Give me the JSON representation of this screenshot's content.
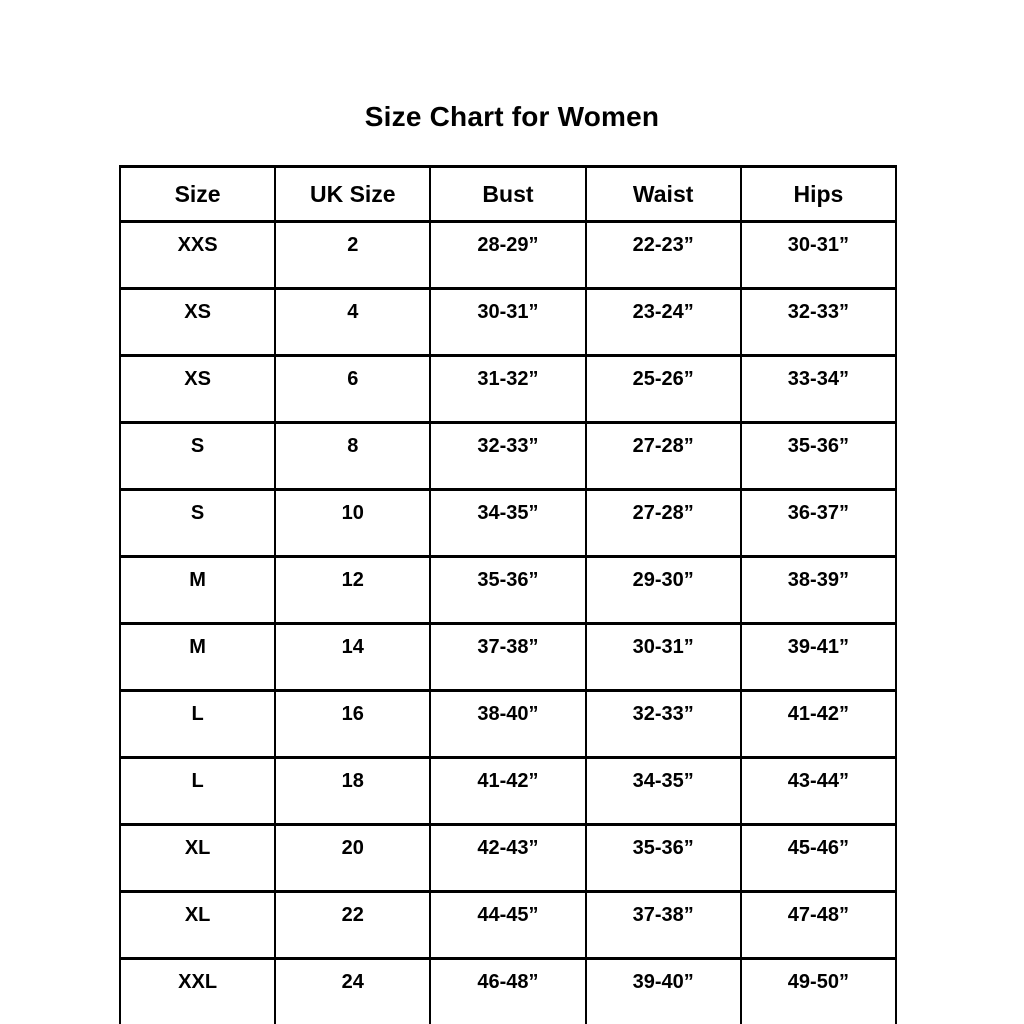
{
  "page": {
    "background_color": "#ffffff",
    "text_color": "#000000",
    "border_color": "#000000"
  },
  "chart_data": {
    "type": "table",
    "title": "Size Chart for Women",
    "columns": [
      "Size",
      "UK Size",
      "Bust",
      "Waist",
      "Hips"
    ],
    "rows": [
      [
        "XXS",
        "2",
        "28-29”",
        "22-23”",
        "30-31”"
      ],
      [
        "XS",
        "4",
        "30-31”",
        "23-24”",
        "32-33”"
      ],
      [
        "XS",
        "6",
        "31-32”",
        "25-26”",
        "33-34”"
      ],
      [
        "S",
        "8",
        "32-33”",
        "27-28”",
        "35-36”"
      ],
      [
        "S",
        "10",
        "34-35”",
        "27-28”",
        "36-37”"
      ],
      [
        "M",
        "12",
        "35-36”",
        "29-30”",
        "38-39”"
      ],
      [
        "M",
        "14",
        "37-38”",
        "30-31”",
        "39-41”"
      ],
      [
        "L",
        "16",
        "38-40”",
        "32-33”",
        "41-42”"
      ],
      [
        "L",
        "18",
        "41-42”",
        "34-35”",
        "43-44”"
      ],
      [
        "XL",
        "20",
        "42-43”",
        "35-36”",
        "45-46”"
      ],
      [
        "XL",
        "22",
        "44-45”",
        "37-38”",
        "47-48”"
      ],
      [
        "XXL",
        "24",
        "46-48”",
        "39-40”",
        "49-50”"
      ]
    ],
    "layout": {
      "grid": "all-borders",
      "header_row": true
    }
  }
}
